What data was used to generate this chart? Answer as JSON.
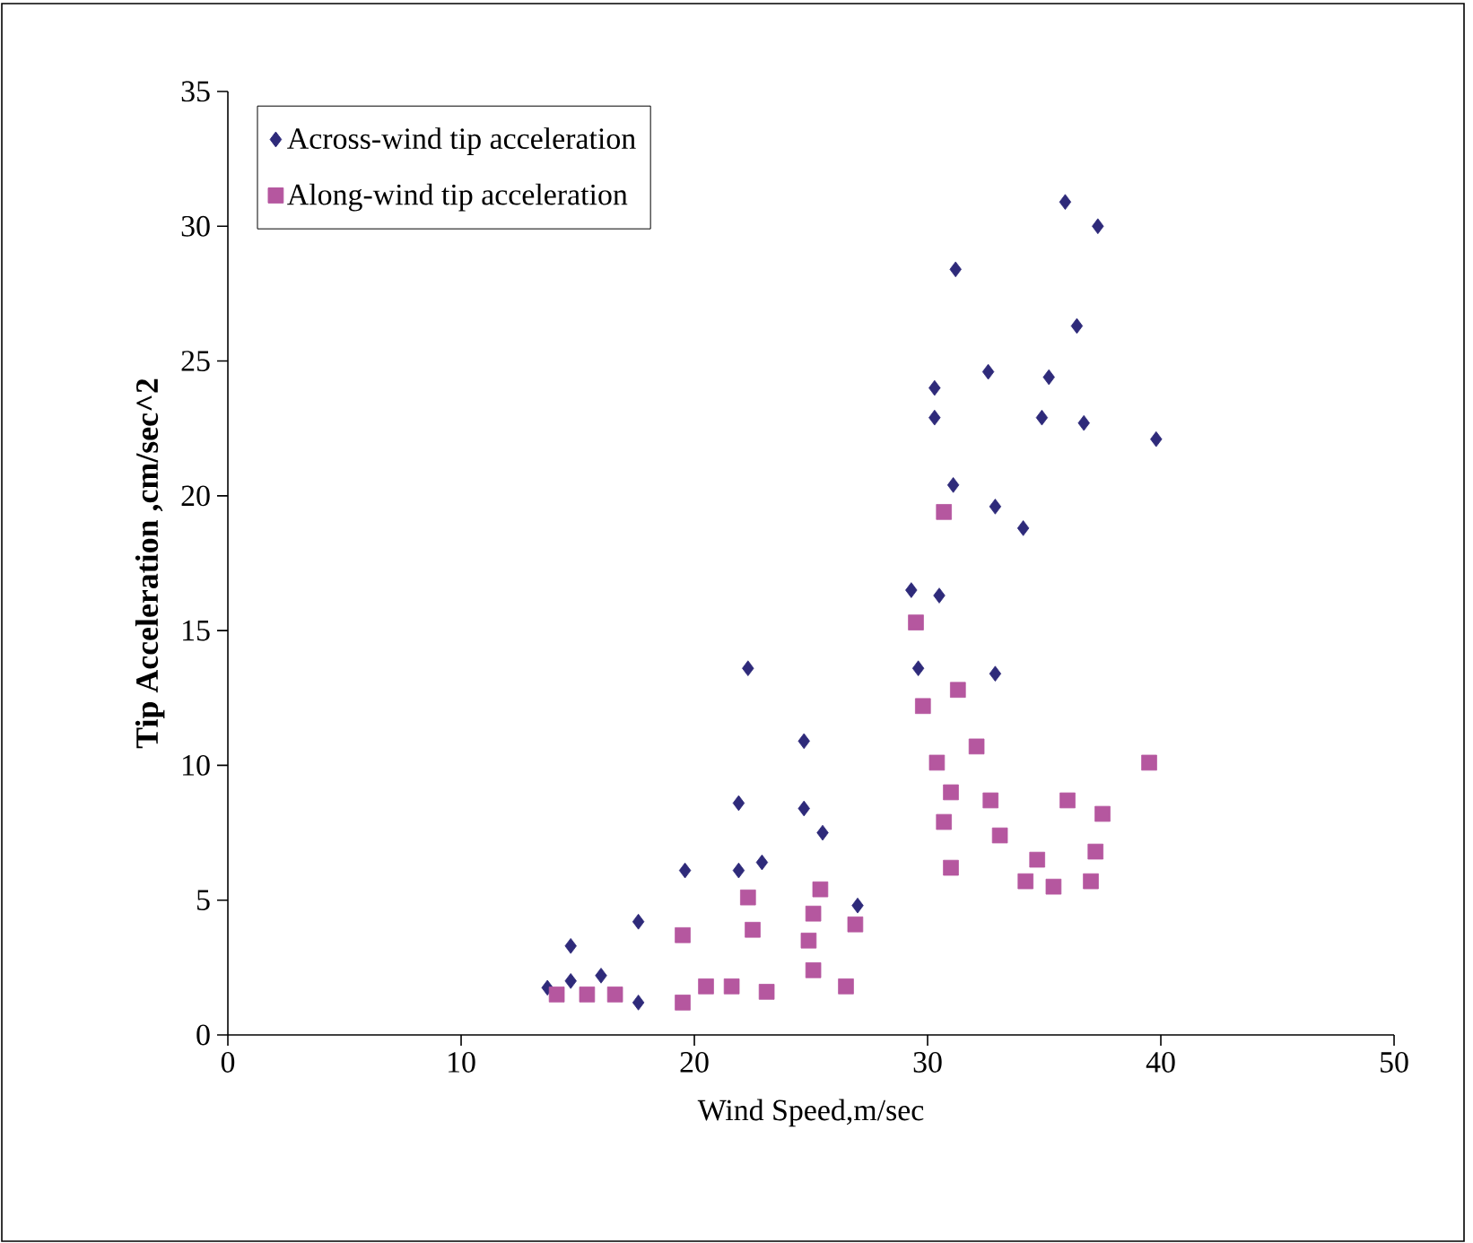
{
  "chart_data": {
    "type": "scatter",
    "xlabel": "Wind Speed,m/sec",
    "ylabel": "Tip Acceleration ,cm/sec^2",
    "xlim": [
      0,
      50
    ],
    "ylim": [
      0,
      35
    ],
    "xticks": [
      0,
      10,
      20,
      30,
      40,
      50
    ],
    "yticks": [
      0,
      5,
      10,
      15,
      20,
      25,
      30,
      35
    ],
    "grid": false,
    "legend": "top left",
    "series": [
      {
        "name": "Across-wind tip acceleration",
        "color": "#2e2a7a",
        "marker": "diamond",
        "x": [
          13.7,
          14.7,
          14.7,
          16.0,
          17.6,
          17.6,
          19.6,
          21.9,
          21.9,
          22.3,
          22.9,
          24.7,
          24.7,
          25.5,
          27.0,
          35.9,
          37.3,
          31.2,
          36.4,
          32.6,
          35.2,
          30.3,
          30.3,
          34.9,
          36.7,
          39.8,
          31.1,
          32.9,
          34.1,
          29.3,
          30.5,
          29.6,
          32.9
        ],
        "values": [
          1.75,
          2.0,
          3.3,
          2.2,
          1.2,
          4.2,
          6.1,
          8.6,
          6.1,
          13.6,
          6.4,
          10.9,
          8.4,
          7.5,
          4.8,
          30.9,
          30.0,
          28.4,
          26.3,
          24.6,
          24.4,
          24.0,
          22.9,
          22.9,
          22.7,
          22.1,
          20.4,
          19.6,
          18.8,
          16.5,
          16.3,
          13.6,
          13.4
        ]
      },
      {
        "name": "Along-wind tip acceleration",
        "color": "#b5579f",
        "marker": "square",
        "x": [
          14.1,
          15.4,
          16.6,
          19.5,
          19.5,
          20.5,
          21.6,
          22.3,
          22.5,
          23.1,
          24.9,
          25.1,
          25.4,
          25.1,
          26.5,
          26.9,
          30.7,
          29.5,
          31.3,
          29.8,
          32.1,
          30.4,
          39.5,
          31.0,
          32.7,
          36.0,
          37.5,
          30.7,
          33.1,
          37.2,
          34.7,
          31.0,
          34.2,
          35.4,
          37.0
        ],
        "values": [
          1.5,
          1.5,
          1.5,
          3.7,
          1.2,
          1.8,
          1.8,
          5.1,
          3.9,
          1.6,
          3.5,
          4.5,
          5.4,
          2.4,
          1.8,
          4.1,
          19.4,
          15.3,
          12.8,
          12.2,
          10.7,
          10.1,
          10.1,
          9.0,
          8.7,
          8.7,
          8.2,
          7.9,
          7.4,
          6.8,
          6.5,
          6.2,
          5.7,
          5.5,
          5.7
        ]
      }
    ]
  }
}
